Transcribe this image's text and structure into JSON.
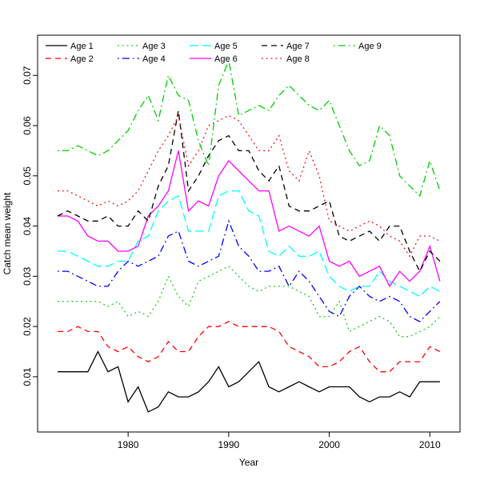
{
  "chart_data": {
    "type": "line",
    "title": "",
    "xlabel": "Year",
    "ylabel": "Catch mean weight",
    "xlim": [
      1971,
      2013
    ],
    "ylim": [
      -0.001,
      0.078
    ],
    "x_ticks": [
      1980,
      1990,
      2000,
      2010
    ],
    "y_ticks": [
      0.01,
      0.02,
      0.03,
      0.04,
      0.05,
      0.06,
      0.07
    ],
    "grid": false,
    "legend_position": "top-left",
    "legend_columns": 5,
    "x": [
      1973,
      1974,
      1975,
      1976,
      1977,
      1978,
      1979,
      1980,
      1981,
      1982,
      1983,
      1984,
      1985,
      1986,
      1987,
      1988,
      1989,
      1990,
      1991,
      1992,
      1993,
      1994,
      1995,
      1996,
      1997,
      1998,
      1999,
      2000,
      2001,
      2002,
      2003,
      2004,
      2005,
      2006,
      2007,
      2008,
      2009,
      2010,
      2011
    ],
    "series": [
      {
        "name": "Age 1",
        "color": "#000000",
        "dash": "solid",
        "values": [
          0.011,
          0.011,
          0.011,
          0.011,
          0.015,
          0.011,
          0.012,
          0.005,
          0.008,
          0.003,
          0.004,
          0.007,
          0.006,
          0.006,
          0.007,
          0.009,
          0.012,
          0.008,
          0.009,
          0.011,
          0.013,
          0.008,
          0.007,
          0.008,
          0.009,
          0.008,
          0.007,
          0.008,
          0.008,
          0.008,
          0.006,
          0.005,
          0.006,
          0.006,
          0.007,
          0.006,
          0.009,
          0.009,
          0.009
        ]
      },
      {
        "name": "Age 2",
        "color": "#FF0000",
        "dash": "dashed",
        "values": [
          0.019,
          0.019,
          0.02,
          0.019,
          0.019,
          0.016,
          0.015,
          0.016,
          0.014,
          0.013,
          0.014,
          0.017,
          0.015,
          0.015,
          0.018,
          0.02,
          0.02,
          0.021,
          0.02,
          0.02,
          0.02,
          0.02,
          0.019,
          0.016,
          0.015,
          0.014,
          0.012,
          0.012,
          0.013,
          0.015,
          0.016,
          0.013,
          0.011,
          0.011,
          0.013,
          0.013,
          0.013,
          0.016,
          0.015
        ]
      },
      {
        "name": "Age 3",
        "color": "#00CD00",
        "dash": "dotted",
        "values": [
          0.025,
          0.025,
          0.025,
          0.025,
          0.025,
          0.024,
          0.025,
          0.022,
          0.023,
          0.022,
          0.025,
          0.03,
          0.026,
          0.024,
          0.029,
          0.03,
          0.031,
          0.032,
          0.03,
          0.028,
          0.027,
          0.028,
          0.028,
          0.028,
          0.027,
          0.026,
          0.022,
          0.022,
          0.025,
          0.019,
          0.02,
          0.021,
          0.022,
          0.021,
          0.018,
          0.018,
          0.019,
          0.02,
          0.022
        ]
      },
      {
        "name": "Age 4",
        "color": "#0000FF",
        "dash": "dotdash",
        "values": [
          0.031,
          0.031,
          0.03,
          0.029,
          0.028,
          0.028,
          0.031,
          0.033,
          0.032,
          0.033,
          0.034,
          0.038,
          0.039,
          0.033,
          0.032,
          0.033,
          0.034,
          0.041,
          0.036,
          0.034,
          0.031,
          0.031,
          0.032,
          0.028,
          0.031,
          0.029,
          0.026,
          0.023,
          0.022,
          0.026,
          0.028,
          0.026,
          0.025,
          0.026,
          0.025,
          0.022,
          0.021,
          0.023,
          0.025
        ]
      },
      {
        "name": "Age 5",
        "color": "#00FFFF",
        "dash": "longdash",
        "values": [
          0.035,
          0.035,
          0.034,
          0.033,
          0.032,
          0.032,
          0.033,
          0.033,
          0.037,
          0.038,
          0.043,
          0.045,
          0.046,
          0.039,
          0.039,
          0.039,
          0.046,
          0.047,
          0.047,
          0.043,
          0.042,
          0.035,
          0.034,
          0.036,
          0.034,
          0.034,
          0.035,
          0.03,
          0.028,
          0.027,
          0.028,
          0.028,
          0.031,
          0.029,
          0.028,
          0.027,
          0.026,
          0.028,
          0.027
        ]
      },
      {
        "name": "Age 6",
        "color": "#FF00FF",
        "dash": "solid",
        "values": [
          0.042,
          0.042,
          0.041,
          0.038,
          0.037,
          0.037,
          0.035,
          0.035,
          0.036,
          0.042,
          0.044,
          0.047,
          0.055,
          0.043,
          0.045,
          0.044,
          0.05,
          0.053,
          0.051,
          0.049,
          0.047,
          0.047,
          0.039,
          0.04,
          0.039,
          0.038,
          0.04,
          0.033,
          0.032,
          0.033,
          0.03,
          0.031,
          0.032,
          0.028,
          0.031,
          0.029,
          0.031,
          0.036,
          0.029
        ]
      },
      {
        "name": "Age 7",
        "color": "#000000",
        "dash": "dashed",
        "values": [
          0.042,
          0.043,
          0.042,
          0.041,
          0.041,
          0.042,
          0.04,
          0.04,
          0.043,
          0.041,
          0.048,
          0.052,
          0.063,
          0.047,
          0.05,
          0.054,
          0.057,
          0.058,
          0.055,
          0.055,
          0.051,
          0.049,
          0.052,
          0.044,
          0.043,
          0.043,
          0.044,
          0.045,
          0.038,
          0.037,
          0.038,
          0.039,
          0.037,
          0.04,
          0.04,
          0.035,
          0.031,
          0.035,
          0.033
        ]
      },
      {
        "name": "Age 8",
        "color": "#FF0000",
        "dash": "dotted",
        "values": [
          0.047,
          0.047,
          0.046,
          0.045,
          0.044,
          0.045,
          0.044,
          0.045,
          0.047,
          0.051,
          0.055,
          0.058,
          0.062,
          0.052,
          0.055,
          0.06,
          0.061,
          0.062,
          0.061,
          0.058,
          0.055,
          0.055,
          0.058,
          0.051,
          0.049,
          0.055,
          0.05,
          0.041,
          0.04,
          0.039,
          0.04,
          0.041,
          0.04,
          0.038,
          0.037,
          0.034,
          0.038,
          0.038,
          0.037
        ]
      },
      {
        "name": "Age 9",
        "color": "#00CD00",
        "dash": "dotdash",
        "values": [
          0.055,
          0.055,
          0.056,
          0.055,
          0.054,
          0.055,
          0.057,
          0.059,
          0.063,
          0.066,
          0.061,
          0.07,
          0.066,
          0.065,
          0.057,
          0.052,
          0.068,
          0.073,
          0.062,
          0.063,
          0.064,
          0.063,
          0.066,
          0.068,
          0.066,
          0.064,
          0.063,
          0.065,
          0.06,
          0.055,
          0.052,
          0.053,
          0.06,
          0.058,
          0.05,
          0.048,
          0.046,
          0.053,
          0.047
        ]
      }
    ]
  }
}
